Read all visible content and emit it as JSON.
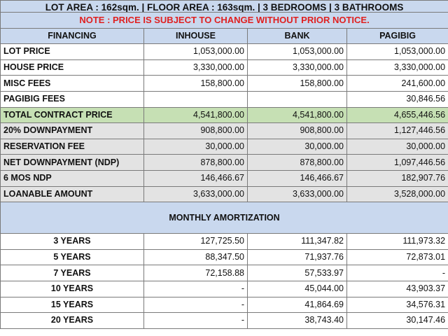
{
  "banner": "LOT AREA : 162sqm. | FLOOR AREA : 163sqm. | 3 BEDROOMS | 3 BATHROOMS",
  "note": "NOTE : PRICE IS SUBJECT TO CHANGE WITHOUT PRIOR NOTICE.",
  "headers": {
    "financing": "FINANCING",
    "inhouse": "INHOUSE",
    "bank": "BANK",
    "pagibig": "PAGIBIG"
  },
  "rows": [
    {
      "label": "LOT PRICE",
      "inhouse": "1,053,000.00",
      "bank": "1,053,000.00",
      "pagibig": "1,053,000.00"
    },
    {
      "label": "HOUSE PRICE",
      "inhouse": "3,330,000.00",
      "bank": "3,330,000.00",
      "pagibig": "3,330,000.00"
    },
    {
      "label": "MISC FEES",
      "inhouse": "158,800.00",
      "bank": "158,800.00",
      "pagibig": "241,600.00"
    },
    {
      "label": "PAGIBIG FEES",
      "inhouse": "",
      "bank": "",
      "pagibig": "30,846.56"
    },
    {
      "label": "TOTAL CONTRACT PRICE",
      "inhouse": "4,541,800.00",
      "bank": "4,541,800.00",
      "pagibig": "4,655,446.56"
    },
    {
      "label": "20% DOWNPAYMENT",
      "inhouse": "908,800.00",
      "bank": "908,800.00",
      "pagibig": "1,127,446.56"
    },
    {
      "label": "RESERVATION FEE",
      "inhouse": "30,000.00",
      "bank": "30,000.00",
      "pagibig": "30,000.00"
    },
    {
      "label": "NET DOWNPAYMENT (NDP)",
      "inhouse": "878,800.00",
      "bank": "878,800.00",
      "pagibig": "1,097,446.56"
    },
    {
      "label": "6 MOS NDP",
      "inhouse": "146,466.67",
      "bank": "146,466.67",
      "pagibig": "182,907.76"
    },
    {
      "label": "LOANABLE AMOUNT",
      "inhouse": "3,633,000.00",
      "bank": "3,633,000.00",
      "pagibig": "3,528,000.00"
    }
  ],
  "amortization_title": "MONTHLY AMORTIZATION",
  "amortization": [
    {
      "label": "3 YEARS",
      "inhouse": "127,725.50",
      "bank": "111,347.82",
      "pagibig": "111,973.32"
    },
    {
      "label": "5 YEARS",
      "inhouse": "88,347.50",
      "bank": "71,937.76",
      "pagibig": "72,873.01"
    },
    {
      "label": "7 YEARS",
      "inhouse": "72,158.88",
      "bank": "57,533.97",
      "pagibig": "-"
    },
    {
      "label": "10 YEARS",
      "inhouse": "-",
      "bank": "45,044.00",
      "pagibig": "43,903.37"
    },
    {
      "label": "15 YEARS",
      "inhouse": "-",
      "bank": "41,864.69",
      "pagibig": "34,576.31"
    },
    {
      "label": "20 YEARS",
      "inhouse": "-",
      "bank": "38,743.40",
      "pagibig": "30,147.46"
    }
  ],
  "colors": {
    "header_blue": "#c9d8ee",
    "total_green": "#c6e0b4",
    "note_red": "#e02020",
    "row_gray": "#e3e3e3"
  }
}
